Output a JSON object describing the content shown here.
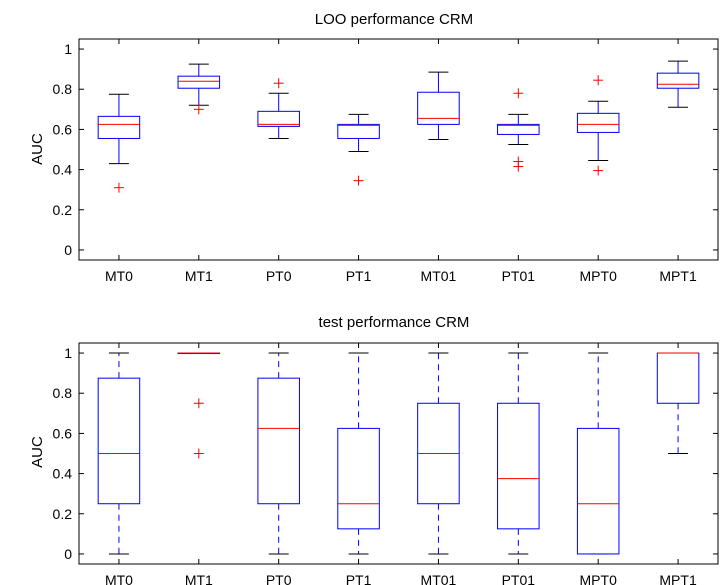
{
  "chart_data": [
    {
      "type": "boxplot",
      "title": "LOO performance CRM",
      "xlabel": "",
      "ylabel": "AUC",
      "ylim": [
        -0.05,
        1.05
      ],
      "yticks": [
        0,
        0.2,
        0.4,
        0.6,
        0.8,
        1
      ],
      "ytick_labels": [
        "0",
        "0.2",
        "0.4",
        "0.6",
        "0.8",
        "1"
      ],
      "grid": false,
      "box_color": "#0000ff",
      "median_color": "#ff0000",
      "outlier_color": "#ff0000",
      "categories": [
        "MT0",
        "MT1",
        "PT0",
        "PT1",
        "MT01",
        "PT01",
        "MPT0",
        "MPT1"
      ],
      "boxes": [
        {
          "label": "MT0",
          "whisker_low": 0.43,
          "q1": 0.555,
          "median": 0.625,
          "q3": 0.665,
          "whisker_high": 0.775,
          "outliers": [
            0.31
          ]
        },
        {
          "label": "MT1",
          "whisker_low": 0.72,
          "q1": 0.805,
          "median": 0.84,
          "q3": 0.865,
          "whisker_high": 0.925,
          "outliers": [
            0.7
          ]
        },
        {
          "label": "PT0",
          "whisker_low": 0.555,
          "q1": 0.615,
          "median": 0.625,
          "q3": 0.69,
          "whisker_high": 0.78,
          "outliers": [
            0.83
          ]
        },
        {
          "label": "PT1",
          "whisker_low": 0.49,
          "q1": 0.555,
          "median": 0.62,
          "q3": 0.625,
          "whisker_high": 0.675,
          "outliers": [
            0.345
          ]
        },
        {
          "label": "MT01",
          "whisker_low": 0.55,
          "q1": 0.625,
          "median": 0.655,
          "q3": 0.785,
          "whisker_high": 0.885,
          "outliers": []
        },
        {
          "label": "PT01",
          "whisker_low": 0.525,
          "q1": 0.575,
          "median": 0.62,
          "q3": 0.625,
          "whisker_high": 0.675,
          "outliers": [
            0.78,
            0.44,
            0.415
          ]
        },
        {
          "label": "MPT0",
          "whisker_low": 0.445,
          "q1": 0.585,
          "median": 0.625,
          "q3": 0.68,
          "whisker_high": 0.74,
          "outliers": [
            0.845,
            0.395
          ]
        },
        {
          "label": "MPT1",
          "whisker_low": 0.71,
          "q1": 0.805,
          "median": 0.825,
          "q3": 0.88,
          "whisker_high": 0.94,
          "outliers": []
        }
      ]
    },
    {
      "type": "boxplot",
      "title": "test performance CRM",
      "xlabel": "",
      "ylabel": "AUC",
      "ylim": [
        -0.05,
        1.05
      ],
      "yticks": [
        0,
        0.2,
        0.4,
        0.6,
        0.8,
        1
      ],
      "ytick_labels": [
        "0",
        "0.2",
        "0.4",
        "0.6",
        "0.8",
        "1"
      ],
      "grid": false,
      "box_color": "#0000ff",
      "median_color": "#ff0000",
      "outlier_color": "#ff0000",
      "categories": [
        "MT0",
        "MT1",
        "PT0",
        "PT1",
        "MT01",
        "PT01",
        "MPT0",
        "MPT1"
      ],
      "boxes": [
        {
          "label": "MT0",
          "whisker_low": 0.0,
          "q1": 0.25,
          "median": 0.5,
          "q3": 0.875,
          "whisker_high": 1.0,
          "outliers": []
        },
        {
          "label": "MT1",
          "whisker_low": 1.0,
          "q1": 1.0,
          "median": 1.0,
          "q3": 1.0,
          "whisker_high": 1.0,
          "outliers": [
            0.75,
            0.5
          ]
        },
        {
          "label": "PT0",
          "whisker_low": 0.0,
          "q1": 0.25,
          "median": 0.625,
          "q3": 0.875,
          "whisker_high": 1.0,
          "outliers": []
        },
        {
          "label": "PT1",
          "whisker_low": 0.0,
          "q1": 0.125,
          "median": 0.25,
          "q3": 0.625,
          "whisker_high": 1.0,
          "outliers": []
        },
        {
          "label": "MT01",
          "whisker_low": 0.0,
          "q1": 0.25,
          "median": 0.5,
          "q3": 0.75,
          "whisker_high": 1.0,
          "outliers": []
        },
        {
          "label": "PT01",
          "whisker_low": 0.0,
          "q1": 0.125,
          "median": 0.375,
          "q3": 0.75,
          "whisker_high": 1.0,
          "outliers": []
        },
        {
          "label": "MPT0",
          "whisker_low": 0.0,
          "q1": 0.0,
          "median": 0.25,
          "q3": 0.625,
          "whisker_high": 1.0,
          "outliers": []
        },
        {
          "label": "MPT1",
          "whisker_low": 0.5,
          "q1": 0.75,
          "median": 1.0,
          "q3": 1.0,
          "whisker_high": 1.0,
          "outliers": []
        }
      ]
    }
  ]
}
